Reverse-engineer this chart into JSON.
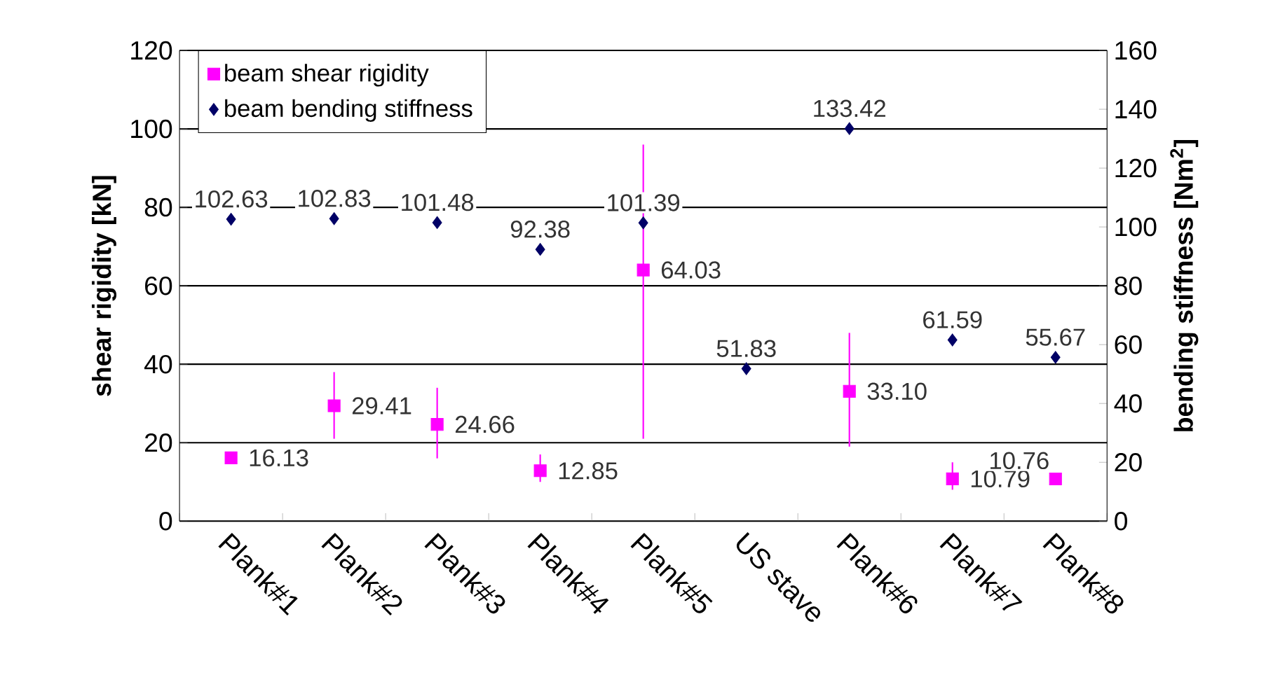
{
  "chart_data": {
    "type": "scatter",
    "ylabel": "shear rigidity [kN]",
    "y2label": "bending stiffness [Nm$^{2}$]",
    "categories": [
      "Plank#1",
      "Plank#2",
      "Plank#3",
      "Plank#4",
      "Plank#5",
      "US stave",
      "Plank#6",
      "Plank#7",
      "Plank#8"
    ],
    "series": [
      {
        "name": "beam shear rigidity",
        "color": "#ff00ff",
        "marker": "square",
        "values": [
          16.13,
          29.41,
          24.66,
          12.85,
          64.03,
          null,
          33.1,
          10.79,
          10.76
        ],
        "value_labels": [
          "16.13",
          "29.41",
          "24.66",
          "12.85",
          "64.03",
          null,
          "33.10",
          "10.79",
          "10.76"
        ],
        "errors": [
          null,
          [
            21,
            38
          ],
          [
            16,
            34
          ],
          [
            10,
            17
          ],
          [
            21,
            96
          ],
          null,
          [
            19,
            48
          ],
          [
            8,
            15
          ],
          null
        ]
      },
      {
        "name": "beam bending stiffness",
        "color": "#000066",
        "marker": "diamond",
        "axis": "y2",
        "values": [
          102.63,
          102.83,
          101.48,
          92.38,
          101.39,
          51.83,
          133.42,
          61.59,
          55.67
        ],
        "value_labels": [
          "102.63",
          "102.83",
          "101.48",
          "92.38",
          "101.39",
          "51.83",
          "133.42",
          "61.59",
          "55.67"
        ]
      }
    ],
    "ylim": [
      0,
      120
    ],
    "yticks": [
      0,
      20,
      40,
      60,
      80,
      100,
      120
    ],
    "y2lim": [
      0,
      160
    ],
    "y2ticks": [
      0,
      20,
      40,
      60,
      80,
      100,
      120,
      140,
      160
    ],
    "grid": "y",
    "legend": "top left",
    "data_labels": true
  }
}
